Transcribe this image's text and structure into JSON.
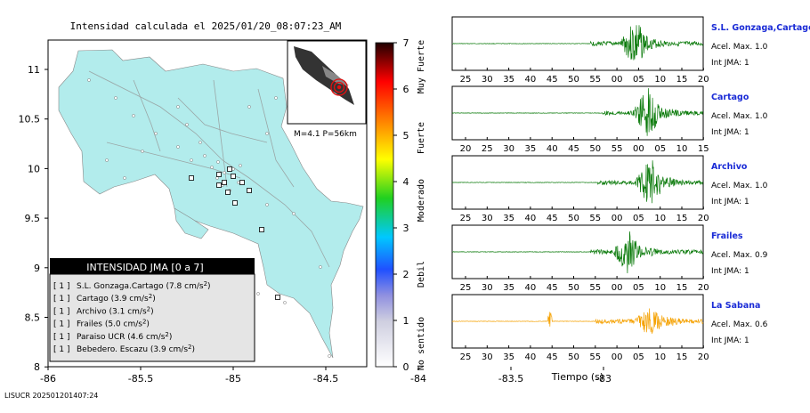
{
  "map": {
    "title": "Intensidad calculada el 2025/01/20_08:07:23_AM",
    "x_ticks": [
      "-86",
      "-85.5",
      "-85",
      "-84.5",
      "-84",
      "-83.5",
      "-83"
    ],
    "y_ticks": [
      "11",
      "10.5",
      "10",
      "9.5",
      "9",
      "8.5",
      "8"
    ],
    "inset_label": "M=4.1 P=56km",
    "footer": "LISUCR 202501201407:24",
    "colors": {
      "land": "#b2ecec",
      "ocean": "#ffffff",
      "roads": "#9aa6a6",
      "epicenter": "#e01010"
    }
  },
  "colorbar": {
    "ticks": [
      "0",
      "1",
      "2",
      "3",
      "4",
      "5",
      "6",
      "7"
    ],
    "labels": [
      "No sentido",
      "Debil",
      "Moderado",
      "Fuerte",
      "Muy Fuerte"
    ]
  },
  "legend": {
    "header": "INTENSIDAD JMA [0 a 7]",
    "items": [
      {
        "tag": "[ 1 ]",
        "text": "S.L. Gonzaga.Cartago (7.8 cm/s",
        "sup": "2",
        "tail": ")"
      },
      {
        "tag": "[ 1 ]",
        "text": "Cartago (3.9 cm/s",
        "sup": "2",
        "tail": ")"
      },
      {
        "tag": "[ 1 ]",
        "text": "Archivo (3.1 cm/s",
        "sup": "2",
        "tail": ")"
      },
      {
        "tag": "[ 1 ]",
        "text": "Frailes (5.0 cm/s",
        "sup": "2",
        "tail": ")"
      },
      {
        "tag": "[ 1 ]",
        "text": "Paraiso UCR (4.6 cm/s",
        "sup": "2",
        "tail": ")"
      },
      {
        "tag": "[ 1 ]",
        "text": "Bebedero. Escazu (3.9 cm/s",
        "sup": "2",
        "tail": ")"
      }
    ]
  },
  "chart_data": {
    "type": "line",
    "xlabel": "Tiempo (s)",
    "series": [
      {
        "name": "S.L. Gonzaga,Cartago",
        "accel": "Acel. Max. 1.0",
        "int": "Int JMA: 1",
        "color": "#0a7a0a",
        "ticks": [
          "25",
          "30",
          "35",
          "40",
          "45",
          "50",
          "55",
          "00",
          "05",
          "10",
          "15",
          "20"
        ],
        "onset": 0.55,
        "burst": 0.73,
        "amp": 1.0
      },
      {
        "name": "Cartago",
        "accel": "Acel. Max. 1.0",
        "int": "Int JMA: 1",
        "color": "#0a7a0a",
        "ticks": [
          "20",
          "25",
          "30",
          "35",
          "40",
          "45",
          "50",
          "55",
          "00",
          "05",
          "10",
          "15"
        ],
        "onset": 0.6,
        "burst": 0.78,
        "amp": 1.0
      },
      {
        "name": "Archivo",
        "accel": "Acel. Max. 1.0",
        "int": "Int JMA: 1",
        "color": "#0a7a0a",
        "ticks": [
          "25",
          "30",
          "35",
          "40",
          "45",
          "50",
          "55",
          "00",
          "05",
          "10",
          "15",
          "20"
        ],
        "onset": 0.58,
        "burst": 0.79,
        "amp": 1.0
      },
      {
        "name": "Frailes",
        "accel": "Acel. Max. 0.9",
        "int": "Int JMA: 1",
        "color": "#0a7a0a",
        "ticks": [
          "25",
          "30",
          "35",
          "40",
          "45",
          "50",
          "55",
          "00",
          "05",
          "10",
          "15",
          "20"
        ],
        "onset": 0.55,
        "burst": 0.7,
        "amp": 0.9
      },
      {
        "name": "La Sabana",
        "accel": "Acel. Max. 0.6",
        "int": "Int JMA: 1",
        "color": "#f5a100",
        "ticks": [
          "25",
          "30",
          "35",
          "40",
          "45",
          "50",
          "55",
          "00",
          "05",
          "10",
          "15",
          "20"
        ],
        "onset": 0.57,
        "burst": 0.79,
        "amp": 0.6
      }
    ]
  }
}
